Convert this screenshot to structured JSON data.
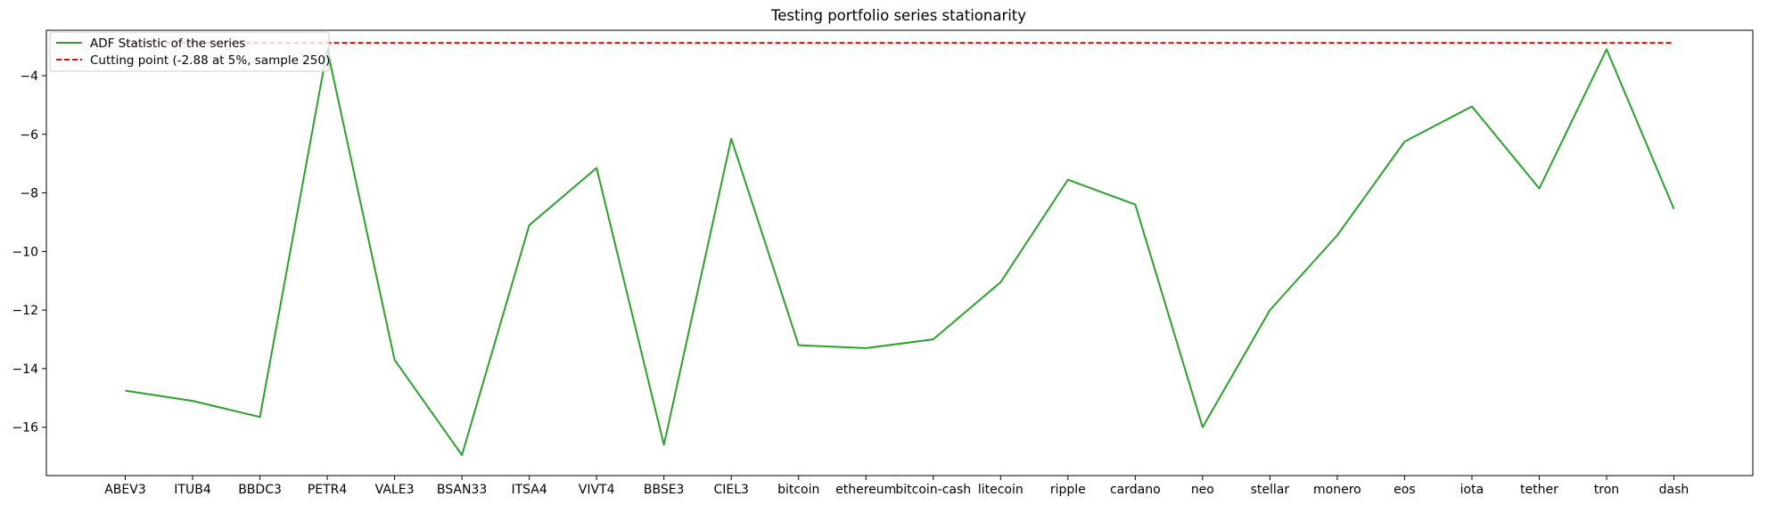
{
  "chart_data": {
    "type": "line",
    "title": "Testing portfolio series stationarity",
    "xlabel": "",
    "ylabel": "",
    "categories": [
      "ABEV3",
      "ITUB4",
      "BBDC3",
      "PETR4",
      "VALE3",
      "BSAN33",
      "ITSA4",
      "VIVT4",
      "BBSE3",
      "CIEL3",
      "bitcoin",
      "ethereum",
      "bitcoin-cash",
      "litecoin",
      "ripple",
      "cardano",
      "neo",
      "stellar",
      "monero",
      "eos",
      "iota",
      "tether",
      "tron",
      "dash"
    ],
    "ylim": [
      -17.65,
      -2.45
    ],
    "yticks": [
      -16,
      -14,
      -12,
      -10,
      -8,
      -6,
      -4
    ],
    "grid": false,
    "legend_position": "upper-left",
    "series": [
      {
        "name": "ADF Statistic of the series",
        "color": "#2ca02c",
        "style": "solid",
        "values": [
          -14.75,
          -15.1,
          -15.65,
          -3.1,
          -13.7,
          -16.95,
          -9.1,
          -7.15,
          -16.6,
          -6.15,
          -13.2,
          -13.3,
          -13.0,
          -11.05,
          -7.55,
          -8.4,
          -16.0,
          -12.0,
          -9.45,
          -6.25,
          -5.05,
          -7.85,
          -3.1,
          -8.55
        ]
      },
      {
        "name": "Cutting point (-2.88 at 5%, sample 250)",
        "color": "#ff0000",
        "style": "dashed",
        "values": [
          -2.88,
          -2.88,
          -2.88,
          -2.88,
          -2.88,
          -2.88,
          -2.88,
          -2.88,
          -2.88,
          -2.88,
          -2.88,
          -2.88,
          -2.88,
          -2.88,
          -2.88,
          -2.88,
          -2.88,
          -2.88,
          -2.88,
          -2.88,
          -2.88,
          -2.88,
          -2.88,
          -2.88
        ]
      }
    ]
  }
}
